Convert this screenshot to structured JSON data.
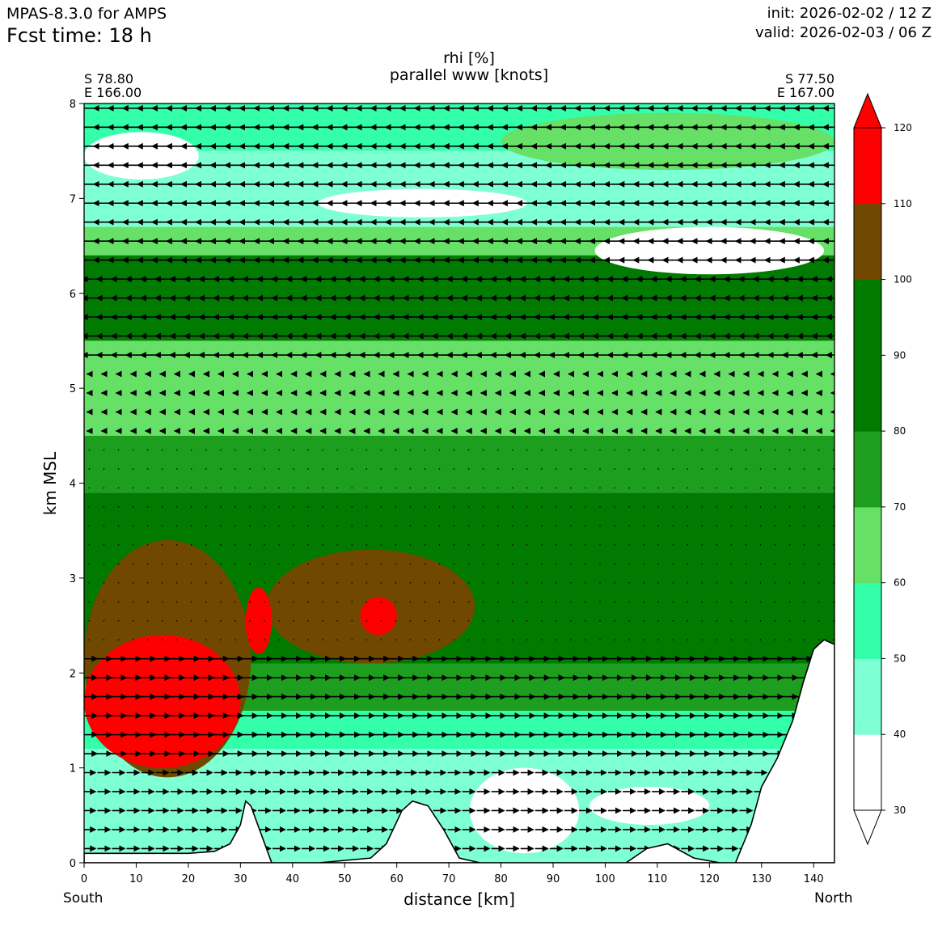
{
  "header": {
    "model": "MPAS-8.3.0 for AMPS",
    "fcst_time": "Fcst time:   18 h",
    "init": "init: 2026-02-02 / 12 Z",
    "valid": "valid: 2026-02-03 / 06 Z"
  },
  "endpoints": {
    "left_lat": "S 78.80",
    "left_lon": "E 166.00",
    "right_lat": "S 77.50",
    "right_lon": "E 167.00",
    "left_dir": "South",
    "right_dir": "North"
  },
  "chart_data": {
    "type": "heatmap",
    "title": "rhi [%]",
    "subtitle": "parallel www [knots]",
    "xlabel": "distance [km]",
    "ylabel": "km MSL",
    "xlim": [
      0,
      144
    ],
    "ylim": [
      0,
      8
    ],
    "x_ticks": [
      "0",
      "10",
      "20",
      "30",
      "40",
      "50",
      "60",
      "70",
      "80",
      "90",
      "100",
      "110",
      "120",
      "130",
      "140"
    ],
    "y_ticks": [
      "0",
      "1",
      "2",
      "3",
      "4",
      "5",
      "6",
      "7",
      "8"
    ],
    "colorbar": {
      "levels": [
        30,
        40,
        50,
        60,
        70,
        80,
        90,
        100,
        110,
        120
      ],
      "colors": [
        "#ffffff",
        "#7fffd4",
        "#33ffaa",
        "#66e066",
        "#1e9e1e",
        "#007a00",
        "#007a00",
        "#704800",
        "#ff0000"
      ],
      "ticks": [
        "30",
        "40",
        "50",
        "60",
        "70",
        "80",
        "90",
        "100",
        "110",
        "120"
      ],
      "extend": "both"
    },
    "rhi_layers": [
      {
        "zmin": 7.5,
        "zmax": 8.0,
        "value": 55
      },
      {
        "zmin": 6.7,
        "zmax": 7.5,
        "value": 45
      },
      {
        "zmin": 6.4,
        "zmax": 6.7,
        "value": 62
      },
      {
        "zmin": 5.5,
        "zmax": 6.4,
        "value": 90
      },
      {
        "zmin": 4.5,
        "zmax": 5.5,
        "value": 65
      },
      {
        "zmin": 3.9,
        "zmax": 4.5,
        "value": 75
      },
      {
        "zmin": 2.1,
        "zmax": 3.9,
        "value": 88
      },
      {
        "zmin": 1.6,
        "zmax": 2.1,
        "value": 72
      },
      {
        "zmin": 1.2,
        "zmax": 1.6,
        "value": 55
      },
      {
        "zmin": 0.0,
        "zmax": 1.2,
        "value": 42
      }
    ],
    "rhi_regions": [
      {
        "x0": 0,
        "x1": 32,
        "z0": 0.9,
        "z1": 3.4,
        "value": 105
      },
      {
        "x0": 0,
        "x1": 30,
        "z0": 1.0,
        "z1": 2.4,
        "value": 115
      },
      {
        "x0": 35,
        "x1": 75,
        "z0": 2.1,
        "z1": 3.3,
        "value": 105
      },
      {
        "x0": 53,
        "x1": 60,
        "z0": 2.4,
        "z1": 2.8,
        "value": 115
      },
      {
        "x0": 31,
        "x1": 36,
        "z0": 2.2,
        "z1": 2.9,
        "value": 115
      },
      {
        "x0": 74,
        "x1": 95,
        "z0": 0.1,
        "z1": 1.0,
        "value": 35
      },
      {
        "x0": 97,
        "x1": 120,
        "z0": 0.4,
        "z1": 0.8,
        "value": 35
      },
      {
        "x0": 98,
        "x1": 142,
        "z0": 6.2,
        "z1": 6.7,
        "value": 35
      },
      {
        "x0": 0,
        "x1": 22,
        "z0": 7.2,
        "z1": 7.7,
        "value": 35
      },
      {
        "x0": 45,
        "x1": 85,
        "z0": 6.8,
        "z1": 7.1,
        "value": 35
      },
      {
        "x0": 80,
        "x1": 144,
        "z0": 7.3,
        "z1": 7.9,
        "value": 68
      }
    ],
    "terrain": {
      "x": [
        0,
        10,
        20,
        25,
        28,
        30,
        31,
        32,
        34,
        36,
        38,
        45,
        55,
        58,
        61,
        63,
        66,
        69,
        72,
        76,
        85,
        104,
        108,
        112,
        117,
        122,
        125,
        128,
        130,
        133,
        136,
        138,
        140,
        142,
        144
      ],
      "z": [
        0.1,
        0.1,
        0.1,
        0.12,
        0.2,
        0.4,
        0.65,
        0.6,
        0.3,
        0.0,
        0.0,
        0.0,
        0.05,
        0.2,
        0.55,
        0.65,
        0.6,
        0.35,
        0.05,
        0.0,
        0.0,
        0.0,
        0.15,
        0.2,
        0.05,
        0.0,
        0.0,
        0.4,
        0.8,
        1.1,
        1.5,
        1.9,
        2.25,
        2.35,
        2.3
      ]
    }
  }
}
